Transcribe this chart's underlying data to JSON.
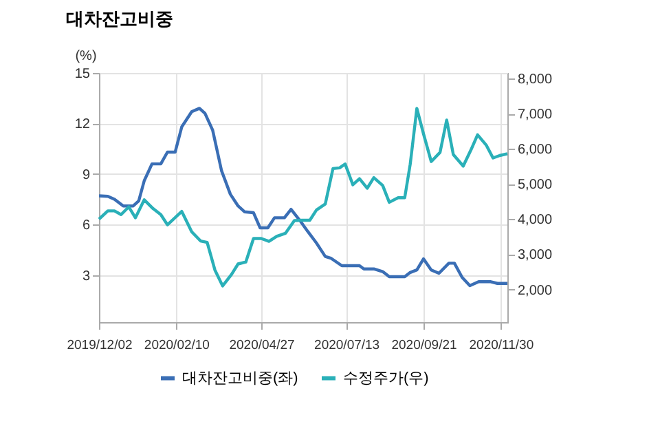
{
  "chart_data": {
    "type": "line",
    "title": "대차잔고비중",
    "ylabel": "(%)",
    "xlim": [
      "2019-12-02",
      "2020-12-06"
    ],
    "xticks": [
      {
        "value": "2019-12-02",
        "label": "2019/12/02"
      },
      {
        "value": "2020-02-10",
        "label": "2020/02/10"
      },
      {
        "value": "2020-04-27",
        "label": "2020/04/27"
      },
      {
        "value": "2020-07-13",
        "label": "2020/07/13"
      },
      {
        "value": "2020-09-21",
        "label": "2020/09/21"
      },
      {
        "value": "2020-11-30",
        "label": "2020/11/30"
      }
    ],
    "ylim": [
      0.2,
      15
    ],
    "yticks": [
      3,
      6,
      9,
      12,
      15
    ],
    "y2lim": [
      1070,
      8160
    ],
    "y2ticks": [
      {
        "value": 2000,
        "label": "2,000"
      },
      {
        "value": 3000,
        "label": "3,000"
      },
      {
        "value": 4000,
        "label": "4,000"
      },
      {
        "value": 5000,
        "label": "5,000"
      },
      {
        "value": 6000,
        "label": "6,000"
      },
      {
        "value": 7000,
        "label": "7,000"
      },
      {
        "value": 8000,
        "label": "8,000"
      }
    ],
    "grid": true,
    "legend": "bottom",
    "line_style": "solid",
    "marker": "none",
    "series": [
      {
        "name": "대차잔고비중(좌)",
        "color": "#3a6eb5",
        "x": [
          "2019-12-02",
          "2019-12-10",
          "2019-12-16",
          "2019-12-24",
          "2020-01-02",
          "2020-01-07",
          "2020-01-12",
          "2020-01-19",
          "2020-01-27",
          "2020-02-02",
          "2020-02-09",
          "2020-02-15",
          "2020-02-24",
          "2020-03-02",
          "2020-03-07",
          "2020-03-14",
          "2020-03-22",
          "2020-03-30",
          "2020-04-06",
          "2020-04-12",
          "2020-04-20",
          "2020-04-26",
          "2020-05-03",
          "2020-05-09",
          "2020-05-18",
          "2020-05-24",
          "2020-06-02",
          "2020-06-08",
          "2020-06-16",
          "2020-06-24",
          "2020-06-29",
          "2020-07-09",
          "2020-07-25",
          "2020-07-29",
          "2020-08-07",
          "2020-08-15",
          "2020-08-21",
          "2020-09-04",
          "2020-09-09",
          "2020-09-15",
          "2020-09-21",
          "2020-09-28",
          "2020-10-05",
          "2020-10-14",
          "2020-10-19",
          "2020-10-26",
          "2020-11-02",
          "2020-11-10",
          "2020-11-21",
          "2020-11-27",
          "2020-12-06"
        ],
        "values": [
          7.7,
          7.67,
          7.5,
          7.1,
          7.1,
          7.4,
          8.6,
          9.6,
          9.6,
          10.3,
          10.3,
          11.8,
          12.7,
          12.9,
          12.6,
          11.6,
          9.2,
          7.8,
          7.1,
          6.75,
          6.7,
          5.8,
          5.8,
          6.4,
          6.4,
          6.9,
          6.15,
          5.6,
          4.9,
          4.1,
          4.0,
          3.55,
          3.55,
          3.36,
          3.36,
          3.2,
          2.9,
          2.9,
          3.15,
          3.3,
          3.96,
          3.3,
          3.1,
          3.7,
          3.7,
          2.86,
          2.37,
          2.6,
          2.6,
          2.5,
          2.5
        ]
      },
      {
        "name": "수정주가(우)",
        "color": "#2ab0b8",
        "axis": "y2",
        "x": [
          "2019-12-02",
          "2019-12-10",
          "2019-12-16",
          "2019-12-22",
          "2019-12-29",
          "2020-01-04",
          "2020-01-12",
          "2020-01-20",
          "2020-01-27",
          "2020-02-02",
          "2020-02-15",
          "2020-02-24",
          "2020-03-03",
          "2020-03-09",
          "2020-03-16",
          "2020-03-23",
          "2020-03-31",
          "2020-04-06",
          "2020-04-13",
          "2020-04-20",
          "2020-04-27",
          "2020-05-04",
          "2020-05-11",
          "2020-05-19",
          "2020-05-27",
          "2020-06-03",
          "2020-06-10",
          "2020-06-16",
          "2020-06-24",
          "2020-07-01",
          "2020-07-07",
          "2020-07-12",
          "2020-07-19",
          "2020-07-25",
          "2020-08-01",
          "2020-08-07",
          "2020-08-15",
          "2020-08-21",
          "2020-08-29",
          "2020-09-04",
          "2020-09-09",
          "2020-09-15",
          "2020-09-21",
          "2020-09-28",
          "2020-10-06",
          "2020-10-12",
          "2020-10-18",
          "2020-10-27",
          "2020-11-03",
          "2020-11-09",
          "2020-11-17",
          "2020-11-23",
          "2020-11-29",
          "2020-12-06"
        ],
        "values": [
          4000,
          4235,
          4235,
          4130,
          4350,
          4040,
          4550,
          4300,
          4130,
          3840,
          4220,
          3640,
          3380,
          3340,
          2555,
          2100,
          2425,
          2725,
          2780,
          3450,
          3450,
          3370,
          3510,
          3600,
          3960,
          3970,
          3970,
          4260,
          4430,
          5440,
          5460,
          5570,
          4980,
          5150,
          4880,
          5180,
          4960,
          4480,
          4610,
          4610,
          5570,
          7150,
          6430,
          5640,
          5900,
          6820,
          5840,
          5510,
          5970,
          6400,
          6100,
          5740,
          5810,
          5860
        ]
      }
    ]
  }
}
